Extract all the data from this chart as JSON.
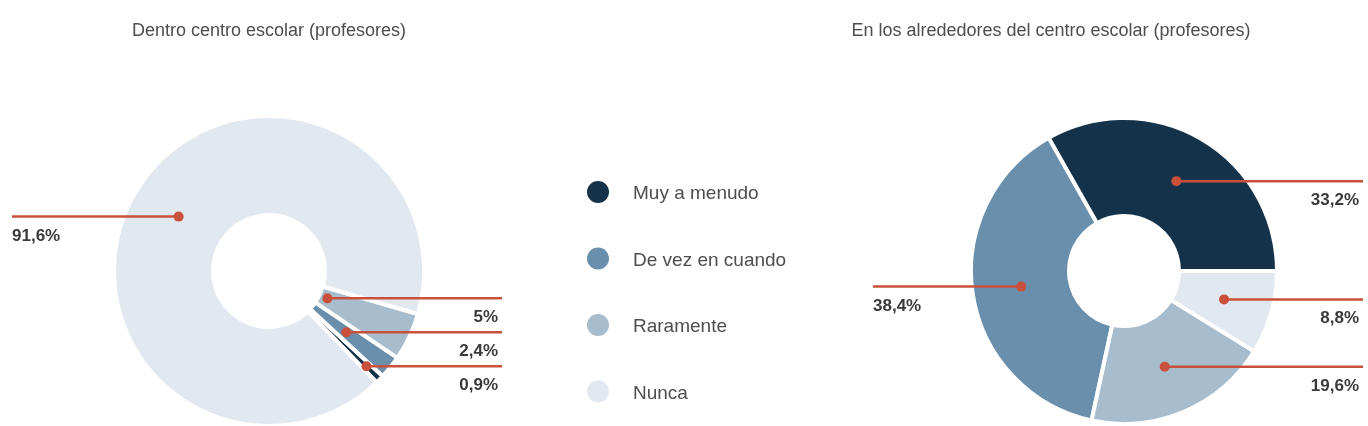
{
  "chart_data": [
    {
      "type": "donut",
      "title": "Dentro centro escolar (profesores)",
      "categories": [
        "Muy a menudo",
        "De vez en cuando",
        "Raramente",
        "Nunca"
      ],
      "values": [
        0.9,
        2.4,
        5,
        91.6
      ],
      "colors": [
        "#14324a",
        "#6a8fac",
        "#a7bccd",
        "#e1e8ef"
      ],
      "value_labels": [
        "0,9%",
        "2,4%",
        "5%",
        "91,6%"
      ],
      "legend": "right"
    },
    {
      "type": "donut",
      "title": "En los alrededores del centro escolar (profesores)",
      "categories": [
        null,
        null,
        null,
        null
      ],
      "values": [
        33.2,
        38.4,
        19.6,
        8.8
      ],
      "colors": [
        "#14324a",
        "#6a8fac",
        "#a7bccd",
        "#e1e8ef"
      ],
      "value_labels": [
        "33,2%",
        "38,4%",
        "19,6%",
        "8,8%"
      ]
    }
  ]
}
